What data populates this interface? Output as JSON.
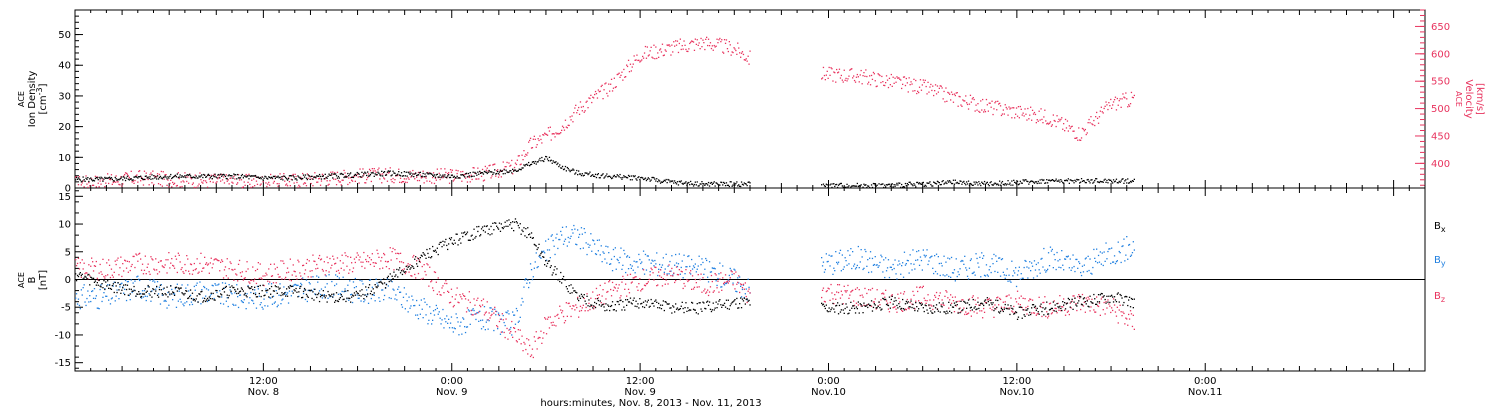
{
  "colors": {
    "black": "#000000",
    "pink": "#e8335e",
    "blue": "#1f7fe0",
    "frame": "#000000"
  },
  "chart_data": [
    {
      "type": "scatter",
      "panel": "top",
      "y_left": {
        "label_lines": [
          "ACE",
          "Ion Density"
        ],
        "unit_prefix": "[cm",
        "unit_exp": "-3",
        "unit_suffix": "]",
        "ylim": [
          0,
          58
        ],
        "ticks": [
          "0",
          "10",
          "20",
          "30",
          "40",
          "50"
        ]
      },
      "y_right": {
        "label_lines": [
          "ACE",
          "Velocity",
          "[km/s]"
        ],
        "ylim": [
          355,
          680
        ],
        "ticks": [
          "400",
          "450",
          "500",
          "550",
          "600",
          "650"
        ]
      },
      "xlim_hours": [
        0,
        86
      ],
      "data_gap_hours": [
        43.0,
        47.5
      ],
      "series": [
        {
          "color_key": "black",
          "axis": "left",
          "x": [
            0,
            2,
            4,
            6,
            8,
            10,
            12,
            14,
            16,
            18,
            20,
            22,
            24,
            26,
            28,
            29,
            30,
            31,
            32,
            34,
            36,
            38,
            40,
            42,
            43,
            47.5,
            50,
            52,
            54,
            56,
            58,
            60,
            62,
            64,
            66,
            67.5
          ],
          "values": [
            3,
            3,
            3.5,
            4,
            4,
            4,
            3.5,
            3.5,
            4,
            4.5,
            5,
            4.5,
            4,
            5,
            6,
            8,
            10,
            7,
            5,
            4,
            3.5,
            2,
            1.5,
            1.5,
            1.5,
            1,
            1,
            1,
            1.5,
            2,
            1.5,
            2,
            2.5,
            2.5,
            2.5,
            2.5
          ]
        },
        {
          "color_key": "pink",
          "axis": "right",
          "x": [
            0,
            2,
            4,
            6,
            8,
            10,
            12,
            14,
            16,
            18,
            20,
            22,
            24,
            26,
            28,
            29,
            30,
            31,
            32,
            34,
            36,
            38,
            40,
            42,
            43,
            47.5,
            50,
            52,
            54,
            56,
            58,
            60,
            62,
            64,
            66,
            67.5
          ],
          "values": [
            365,
            368,
            375,
            372,
            370,
            368,
            367,
            370,
            374,
            378,
            380,
            378,
            378,
            382,
            395,
            435,
            450,
            470,
            500,
            540,
            600,
            612,
            622,
            610,
            592,
            565,
            560,
            550,
            540,
            520,
            505,
            495,
            485,
            455,
            510,
            520
          ]
        }
      ]
    },
    {
      "type": "scatter",
      "panel": "bottom",
      "y_left": {
        "label_lines": [
          "ACE",
          "B",
          "[nT]"
        ],
        "ylim": [
          -16.5,
          16.5
        ],
        "ticks": [
          "-15",
          "-10",
          "-5",
          "0",
          "5",
          "10",
          "15"
        ]
      },
      "legend": [
        {
          "sym": "B",
          "sub": "x",
          "color_key": "black"
        },
        {
          "sym": "B",
          "sub": "y",
          "color_key": "blue"
        },
        {
          "sym": "B",
          "sub": "z",
          "color_key": "pink"
        }
      ],
      "xlim_hours": [
        0,
        86
      ],
      "data_gap_hours": [
        43.0,
        47.5
      ],
      "series": [
        {
          "name": "Bx",
          "color_key": "black",
          "x": [
            0,
            2,
            4,
            6,
            8,
            10,
            12,
            14,
            16,
            18,
            20,
            22,
            24,
            26,
            28,
            29,
            30,
            31,
            32,
            34,
            36,
            38,
            40,
            42,
            43,
            47.5,
            50,
            52,
            54,
            56,
            58,
            60,
            62,
            64,
            66,
            67.5
          ],
          "values": [
            1,
            -1,
            -2,
            -2,
            -3,
            -2,
            -2,
            -2,
            -3,
            -3,
            0,
            4,
            7,
            9,
            10,
            8,
            3,
            0,
            -3,
            -5,
            -4,
            -5,
            -5,
            -4,
            -4,
            -5,
            -5,
            -4,
            -5,
            -5,
            -4,
            -6,
            -5,
            -4,
            -3,
            -4
          ]
        },
        {
          "name": "By",
          "color_key": "blue",
          "x": [
            0,
            2,
            4,
            6,
            8,
            10,
            12,
            14,
            16,
            18,
            20,
            22,
            24,
            26,
            28,
            29,
            30,
            31,
            32,
            34,
            36,
            38,
            40,
            42,
            43,
            47.5,
            50,
            52,
            54,
            56,
            58,
            60,
            62,
            64,
            66,
            67.5
          ],
          "values": [
            -3,
            -3,
            -1,
            -3,
            -2,
            -3,
            -3,
            -2,
            -1,
            -2,
            -2,
            -5,
            -8,
            -7,
            -8,
            2,
            5,
            8,
            8,
            4,
            3,
            3,
            2,
            0,
            -2,
            3,
            4,
            2,
            4,
            2,
            3,
            1,
            4,
            2,
            5,
            6
          ]
        },
        {
          "name": "Bz",
          "color_key": "pink",
          "x": [
            0,
            2,
            4,
            6,
            8,
            10,
            12,
            14,
            16,
            18,
            20,
            22,
            24,
            26,
            28,
            29,
            30,
            31,
            32,
            34,
            36,
            38,
            40,
            42,
            43,
            47.5,
            50,
            52,
            54,
            56,
            58,
            60,
            62,
            64,
            66,
            67.5
          ],
          "values": [
            2,
            2,
            3,
            3,
            3,
            2,
            1,
            2,
            3,
            3,
            4,
            2,
            -3,
            -5,
            -10,
            -13,
            -8,
            -6,
            -5,
            -2,
            0,
            1,
            -1,
            0,
            -3,
            -2,
            -3,
            -4,
            -3,
            -4,
            -5,
            -4,
            -5,
            -4,
            -5,
            -8
          ]
        }
      ]
    }
  ],
  "x_axis": {
    "ticks": [
      {
        "hour": 12,
        "time": "12:00",
        "date": "Nov. 8"
      },
      {
        "hour": 24,
        "time": "0:00",
        "date": "Nov. 9"
      },
      {
        "hour": 36,
        "time": "12:00",
        "date": "Nov. 9"
      },
      {
        "hour": 48,
        "time": "0:00",
        "date": "Nov.10"
      },
      {
        "hour": 60,
        "time": "12:00",
        "date": "Nov.10"
      },
      {
        "hour": 72,
        "time": "0:00",
        "date": "Nov.11"
      }
    ],
    "label": "hours:minutes, Nov.  8, 2013 - Nov. 11, 2013"
  }
}
